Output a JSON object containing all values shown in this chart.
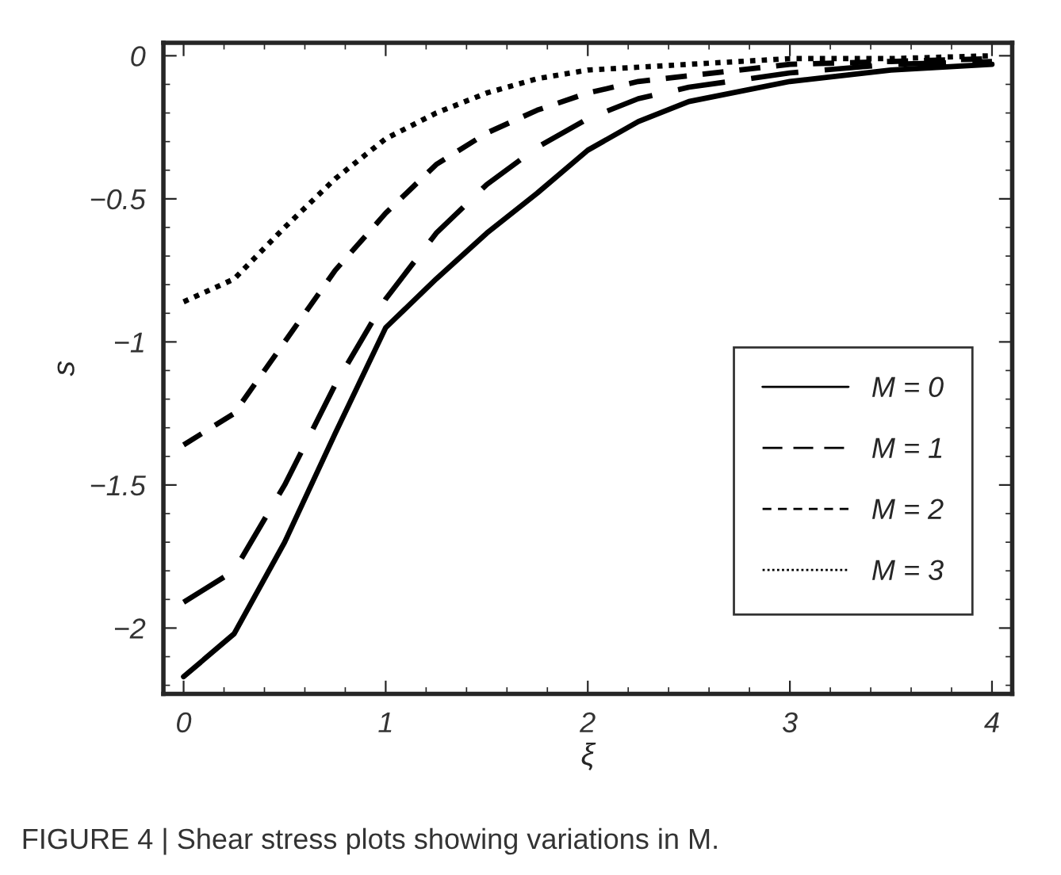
{
  "chart_data": {
    "type": "line",
    "xlabel": "ξ",
    "ylabel": "s",
    "xlim": [
      -0.1,
      4.1
    ],
    "ylim": [
      -2.23,
      0.045
    ],
    "xticks": [
      0,
      1,
      2,
      3,
      4
    ],
    "yticks": [
      {
        "value": 0,
        "label": "0"
      },
      {
        "value": -0.5,
        "label": "−0.5"
      },
      {
        "value": -1,
        "label": "−1"
      },
      {
        "value": -1.5,
        "label": "−1.5"
      },
      {
        "value": -2,
        "label": "−2"
      }
    ],
    "x": [
      0,
      0.25,
      0.5,
      0.75,
      1,
      1.25,
      1.5,
      1.75,
      2,
      2.25,
      2.5,
      3,
      3.5,
      4
    ],
    "series": [
      {
        "name": "M = 0",
        "color": "#000000",
        "line_style": "solid",
        "values": [
          -2.17,
          -2.02,
          -1.7,
          -1.32,
          -0.95,
          -0.78,
          -0.62,
          -0.48,
          -0.33,
          -0.23,
          -0.16,
          -0.09,
          -0.05,
          -0.03
        ]
      },
      {
        "name": "M = 1",
        "color": "#000000",
        "line_style": "long dashed",
        "values": [
          -1.91,
          -1.8,
          -1.5,
          -1.15,
          -0.85,
          -0.62,
          -0.45,
          -0.32,
          -0.22,
          -0.15,
          -0.11,
          -0.06,
          -0.03,
          -0.02
        ]
      },
      {
        "name": "M = 2",
        "color": "#000000",
        "line_style": "dashed",
        "values": [
          -1.36,
          -1.25,
          -1.0,
          -0.75,
          -0.55,
          -0.38,
          -0.27,
          -0.19,
          -0.13,
          -0.09,
          -0.07,
          -0.03,
          -0.02,
          -0.01
        ]
      },
      {
        "name": "M = 3",
        "color": "#000000",
        "line_style": "dotted",
        "values": [
          -0.86,
          -0.78,
          -0.6,
          -0.43,
          -0.29,
          -0.2,
          -0.13,
          -0.08,
          -0.05,
          -0.04,
          -0.03,
          -0.01,
          -0.01,
          0.0
        ]
      }
    ],
    "legend": "bottom right",
    "grid": false,
    "marker": "none",
    "annotations": [
      "FIGURE 4 | Shear stress plots showing variations in M."
    ]
  }
}
